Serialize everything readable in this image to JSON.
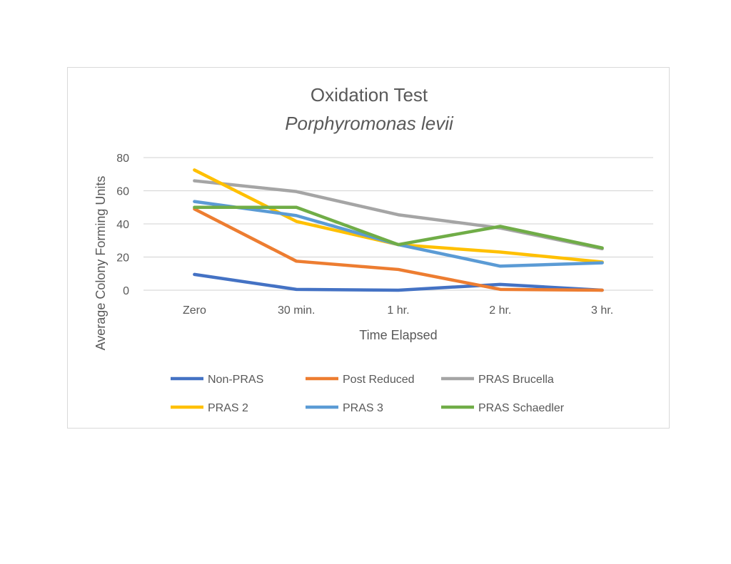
{
  "chart_data": {
    "type": "line",
    "title": "Oxidation Test",
    "subtitle": "Porphyromonas levii",
    "xlabel": "Time Elapsed",
    "ylabel": "Average Colony Forming Units",
    "categories": [
      "Zero",
      "30 min.",
      "1 hr.",
      "2 hr.",
      "3 hr."
    ],
    "ylim": [
      0,
      80
    ],
    "yticks": [
      "0",
      "20",
      "40",
      "60",
      "80"
    ],
    "grid": true,
    "legend_position": "bottom",
    "series": [
      {
        "name": "Non-PRAS",
        "color": "#4472c4",
        "values": [
          9.5,
          0.5,
          0,
          3.5,
          0
        ]
      },
      {
        "name": "Post Reduced",
        "color": "#ed7d31",
        "values": [
          49,
          17.5,
          12.5,
          0.5,
          0
        ]
      },
      {
        "name": "PRAS Brucella",
        "color": "#a5a5a5",
        "values": [
          66,
          59.5,
          45.5,
          37.5,
          25
        ]
      },
      {
        "name": "PRAS 2",
        "color": "#ffc000",
        "values": [
          72.5,
          41.5,
          27.5,
          23,
          17
        ]
      },
      {
        "name": "PRAS 3",
        "color": "#5b9bd5",
        "values": [
          53.5,
          45,
          27.5,
          14.5,
          16.5
        ]
      },
      {
        "name": "PRAS Schaedler",
        "color": "#70ad47",
        "values": [
          50,
          50,
          27.5,
          38.5,
          25.5
        ]
      }
    ]
  }
}
